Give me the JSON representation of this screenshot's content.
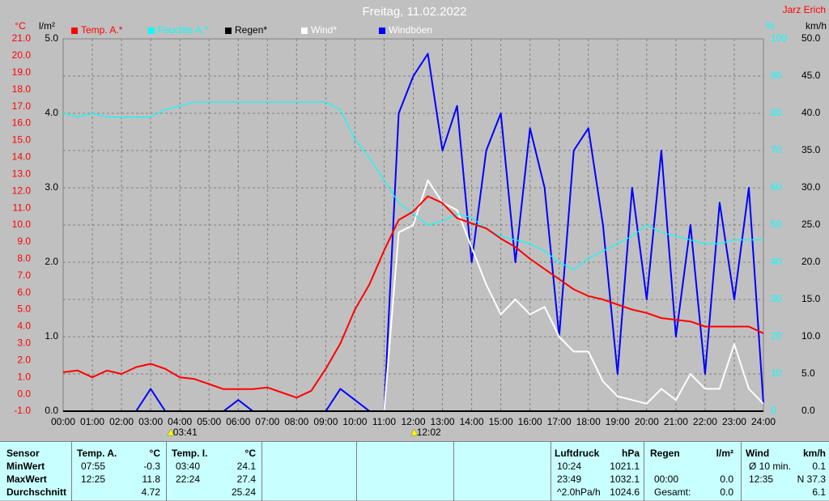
{
  "chart_data": {
    "type": "line",
    "title": "Freitag, 11.02.2022",
    "author": "Jarz Erich",
    "ylabel": "°C",
    "y2label": "l/m²",
    "y3label": "%",
    "y4label": "km/h",
    "x": [
      0,
      0.5,
      1,
      1.5,
      2,
      2.5,
      3,
      3.5,
      4,
      4.5,
      5,
      5.5,
      6,
      6.5,
      7,
      7.5,
      8,
      8.5,
      9,
      9.5,
      10,
      10.5,
      11,
      11.5,
      12,
      12.5,
      13,
      13.5,
      14,
      14.5,
      15,
      15.5,
      16,
      16.5,
      17,
      17.5,
      18,
      18.5,
      19,
      19.5,
      20,
      20.5,
      21,
      21.5,
      22,
      22.5,
      23,
      23.5,
      24
    ],
    "xlim": [
      0,
      24
    ],
    "xticks": [
      {
        "value": 0,
        "label": "00:00"
      },
      {
        "value": 1,
        "label": "01:00"
      },
      {
        "value": 2,
        "label": "02:00"
      },
      {
        "value": 3,
        "label": "03:00"
      },
      {
        "value": 4,
        "label": "04:00"
      },
      {
        "value": 5,
        "label": "05:00"
      },
      {
        "value": 6,
        "label": "06:00"
      },
      {
        "value": 7,
        "label": "07:00"
      },
      {
        "value": 8,
        "label": "08:00"
      },
      {
        "value": 9,
        "label": "09:00"
      },
      {
        "value": 10,
        "label": "10:00"
      },
      {
        "value": 11,
        "label": "11:00"
      },
      {
        "value": 12,
        "label": "12:00"
      },
      {
        "value": 13,
        "label": "13:00"
      },
      {
        "value": 14,
        "label": "14:00"
      },
      {
        "value": 15,
        "label": "15:00"
      },
      {
        "value": 16,
        "label": "16:00"
      },
      {
        "value": 17,
        "label": "17:00"
      },
      {
        "value": 18,
        "label": "18:00"
      },
      {
        "value": 19,
        "label": "19:00"
      },
      {
        "value": 20,
        "label": "20:00"
      },
      {
        "value": 21,
        "label": "21:00"
      },
      {
        "value": 22,
        "label": "22:00"
      },
      {
        "value": 23,
        "label": "23:00"
      },
      {
        "value": 24,
        "label": "24:00"
      }
    ],
    "ylim": [
      -1,
      21
    ],
    "yticks": [
      {
        "value": -1,
        "label": "-1.0"
      },
      {
        "value": 0,
        "label": "0.0"
      },
      {
        "value": 1,
        "label": "1.0"
      },
      {
        "value": 2,
        "label": "2.0"
      },
      {
        "value": 3,
        "label": "3.0"
      },
      {
        "value": 4,
        "label": "4.0"
      },
      {
        "value": 5,
        "label": "5.0"
      },
      {
        "value": 6,
        "label": "6.0"
      },
      {
        "value": 7,
        "label": "7.0"
      },
      {
        "value": 8,
        "label": "8.0"
      },
      {
        "value": 9,
        "label": "9.0"
      },
      {
        "value": 10,
        "label": "10.0"
      },
      {
        "value": 11,
        "label": "11.0"
      },
      {
        "value": 12,
        "label": "12.0"
      },
      {
        "value": 13,
        "label": "13.0"
      },
      {
        "value": 14,
        "label": "14.0"
      },
      {
        "value": 15,
        "label": "15.0"
      },
      {
        "value": 16,
        "label": "16.0"
      },
      {
        "value": 17,
        "label": "17.0"
      },
      {
        "value": 18,
        "label": "18.0"
      },
      {
        "value": 19,
        "label": "19.0"
      },
      {
        "value": 20,
        "label": "20.0"
      },
      {
        "value": 21,
        "label": "21.0"
      }
    ],
    "y2lim": [
      0,
      5
    ],
    "y2ticks": [
      {
        "value": 0,
        "label": "0.0"
      },
      {
        "value": 1,
        "label": "1.0"
      },
      {
        "value": 2,
        "label": "2.0"
      },
      {
        "value": 3,
        "label": "3.0"
      },
      {
        "value": 4,
        "label": "4.0"
      },
      {
        "value": 5,
        "label": "5.0"
      }
    ],
    "y3lim": [
      0,
      100
    ],
    "y3ticks": [
      0,
      10,
      20,
      30,
      40,
      50,
      60,
      70,
      80,
      90,
      100
    ],
    "y4lim": [
      0,
      50
    ],
    "y4ticks": [
      {
        "value": 0,
        "label": "0.0"
      },
      {
        "value": 5,
        "label": "5.0"
      },
      {
        "value": 10,
        "label": "10.0"
      },
      {
        "value": 15,
        "label": "15.0"
      },
      {
        "value": 20,
        "label": "20.0"
      },
      {
        "value": 25,
        "label": "25.0"
      },
      {
        "value": 30,
        "label": "30.0"
      },
      {
        "value": 35,
        "label": "35.0"
      },
      {
        "value": 40,
        "label": "40.0"
      },
      {
        "value": 45,
        "label": "45.0"
      },
      {
        "value": 50,
        "label": "50.0"
      }
    ],
    "grid": true,
    "series": [
      {
        "name": "Temp. A.*",
        "color": "#ff0000",
        "axis": "y",
        "values": [
          1.3,
          1.4,
          1.0,
          1.4,
          1.2,
          1.6,
          1.8,
          1.5,
          1.0,
          0.9,
          0.6,
          0.3,
          0.3,
          0.3,
          0.4,
          0.1,
          -0.2,
          0.2,
          1.5,
          3.0,
          5.0,
          6.5,
          8.5,
          10.3,
          10.8,
          11.7,
          11.3,
          10.4,
          10.1,
          9.8,
          9.2,
          8.7,
          8.0,
          7.4,
          6.8,
          6.2,
          5.8,
          5.6,
          5.3,
          5.0,
          4.8,
          4.5,
          4.4,
          4.3,
          4.0,
          4.0,
          4.0,
          4.0,
          3.6
        ]
      },
      {
        "name": "Feuchte A.*",
        "color": "#00ffff",
        "axis": "y3",
        "values": [
          80,
          79,
          80,
          79,
          79,
          79,
          79,
          81,
          82,
          83,
          83,
          83,
          83,
          83,
          83,
          83,
          83,
          83,
          83,
          81,
          73,
          68,
          62,
          56,
          53,
          50,
          51,
          53,
          52,
          49,
          47,
          46,
          45,
          43,
          40,
          38,
          41,
          43,
          45,
          47,
          50,
          48,
          47,
          46,
          45,
          45,
          46,
          46,
          46
        ]
      },
      {
        "name": "Regen*",
        "color": "#000000",
        "axis": "y2",
        "values": [
          0,
          0,
          0,
          0,
          0,
          0,
          0,
          0,
          0,
          0,
          0,
          0,
          0,
          0,
          0,
          0,
          0,
          0,
          0,
          0,
          0,
          0,
          0,
          0,
          0,
          0,
          0,
          0,
          0,
          0,
          0,
          0,
          0,
          0,
          0,
          0,
          0,
          0,
          0,
          0,
          0,
          0,
          0,
          0,
          0,
          0,
          0,
          0,
          0
        ]
      },
      {
        "name": "Wind*",
        "color": "#ffffff",
        "axis": "y4",
        "values": [
          0,
          0,
          0,
          0,
          0,
          0,
          0,
          0,
          0,
          0,
          0,
          0,
          0,
          0,
          0,
          0,
          0,
          0,
          0,
          0,
          0,
          0,
          0,
          24,
          25,
          31,
          28,
          27,
          22,
          17,
          13,
          15,
          13,
          14,
          10,
          8,
          8,
          4,
          2,
          1.5,
          1,
          3,
          1.5,
          5,
          3,
          3,
          9,
          3,
          1
        ]
      },
      {
        "name": "Windböen",
        "color": "#0000ff",
        "axis": "y4",
        "values": [
          0,
          0,
          0,
          0,
          0,
          0,
          3,
          0,
          0,
          0,
          0,
          0,
          1.5,
          0,
          0,
          0,
          0,
          0,
          0,
          3,
          1.5,
          0,
          0,
          40,
          45,
          48,
          35,
          41,
          20,
          35,
          40,
          20,
          38,
          30,
          10,
          35,
          38,
          25,
          5,
          30,
          15,
          35,
          10,
          25,
          5,
          28,
          15,
          30,
          1
        ]
      }
    ],
    "annotations": [
      "03:41",
      "12:02"
    ]
  },
  "table": {
    "header": [
      "Sensor",
      "Temp. A.",
      "°C",
      "Temp. I.",
      "°C",
      "Luftdruck",
      "hPa",
      "Regen",
      "l/m²",
      "Wind",
      "km/h"
    ],
    "rows": [
      {
        "label": "MinWert",
        "cells": [
          "07:55",
          "-0.3",
          "03:40",
          "24.1",
          "10:24",
          "1021.1",
          null,
          null,
          "Ø 10 min.",
          "0.1"
        ]
      },
      {
        "label": "MaxWert",
        "cells": [
          "12:25",
          "11.8",
          "22:24",
          "27.4",
          "23:49",
          "1032.1",
          "00:00",
          "0.0",
          "12:35",
          "N 37.3"
        ]
      },
      {
        "label": "Durchschnitt",
        "cells": [
          null,
          "4.72",
          null,
          "25.24",
          "^2.0hPa/h",
          "1024.6",
          "Gesamt:",
          "0.0",
          null,
          "6.1"
        ]
      }
    ]
  }
}
